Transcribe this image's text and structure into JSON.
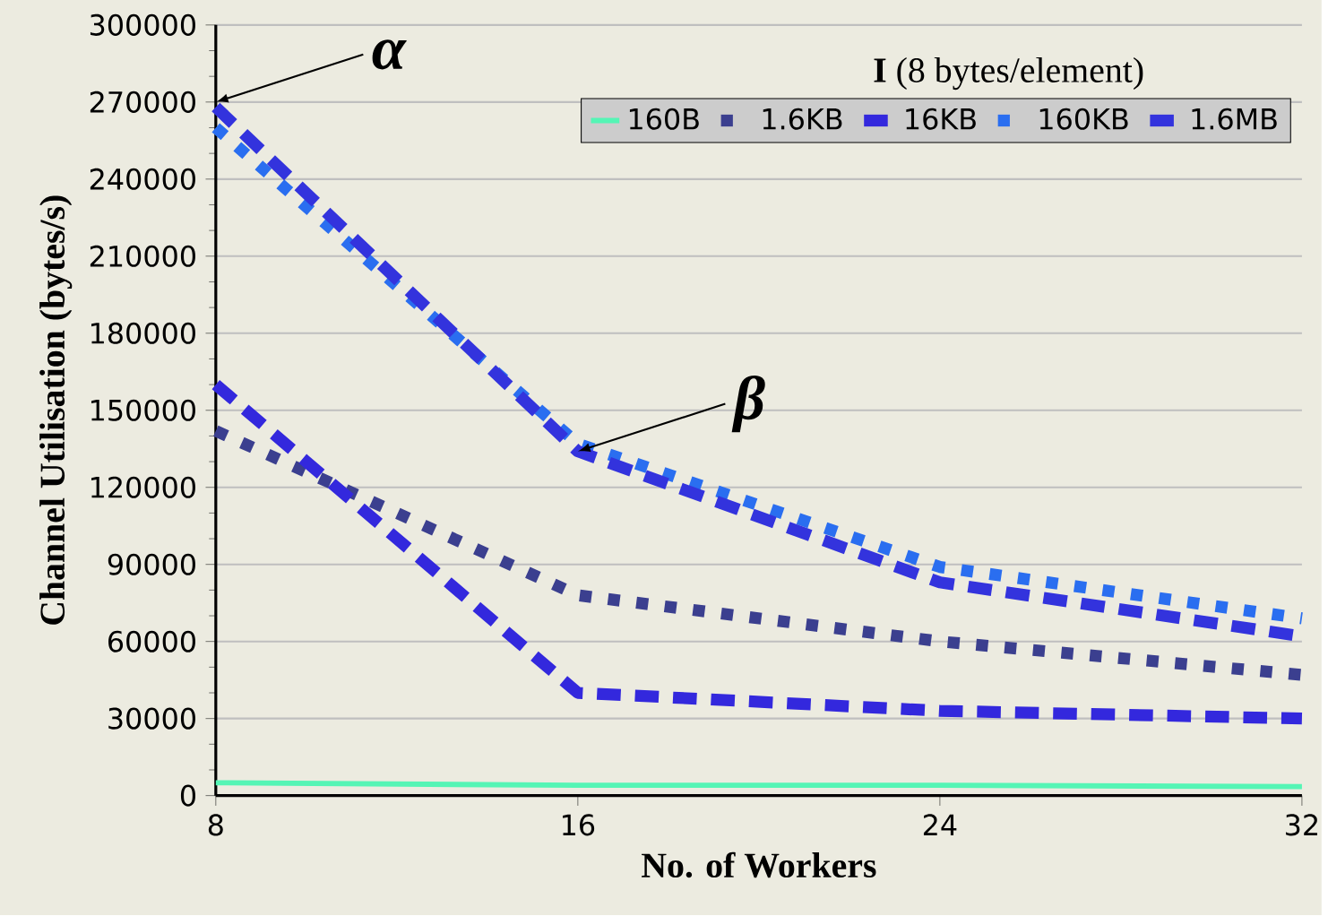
{
  "chart_data": {
    "type": "line",
    "xlabel": "No. of Workers",
    "ylabel": "Channel Utilisation (bytes/s)",
    "legend_title": "**I** (8 bytes/element)",
    "x": [
      8,
      16,
      24,
      32
    ],
    "series": [
      {
        "name": "160B",
        "color": "#55f5b5",
        "line_style": "solid",
        "values": [
          5000,
          4000,
          4000,
          3500
        ]
      },
      {
        "name": "1.6KB",
        "color": "#3b3f8f",
        "line_style": "dotted",
        "values": [
          142000,
          78000,
          60000,
          47000
        ]
      },
      {
        "name": "16KB",
        "color": "#3328dd",
        "line_style": "dashed",
        "values": [
          160000,
          40000,
          33000,
          30000
        ]
      },
      {
        "name": "160KB",
        "color": "#2a6ef0",
        "line_style": "dotted",
        "values": [
          260000,
          137000,
          89000,
          69000
        ]
      },
      {
        "name": "1.6MB",
        "color": "#3333dd",
        "line_style": "dashed",
        "values": [
          268000,
          134000,
          83000,
          62000
        ]
      }
    ],
    "xlim": [
      8,
      32
    ],
    "xticks": [
      8,
      16,
      24,
      32
    ],
    "ylim": [
      0,
      300000
    ],
    "yticks": [
      0,
      30000,
      60000,
      90000,
      120000,
      150000,
      180000,
      210000,
      240000,
      270000,
      300000
    ],
    "grid": "y",
    "legend": "top right",
    "marker": "none",
    "annotations": [
      {
        "text": "α",
        "x": 8,
        "y": 270000
      },
      {
        "text": "β",
        "x": 16,
        "y": 134000
      }
    ]
  }
}
